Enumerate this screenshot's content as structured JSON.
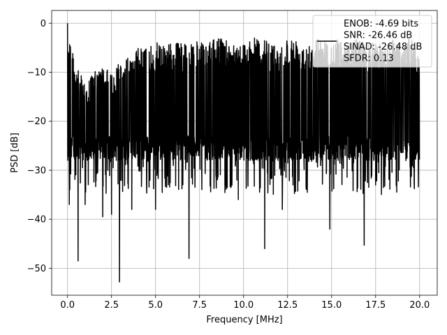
{
  "chart_data": {
    "type": "line",
    "xlabel": "Frequency [MHz]",
    "ylabel": "PSD [dB]",
    "xlim": [
      -0.9,
      21.0
    ],
    "ylim": [
      -55.5,
      2.6
    ],
    "xticks": [
      0.0,
      2.5,
      5.0,
      7.5,
      10.0,
      12.5,
      15.0,
      17.5,
      20.0
    ],
    "xtick_labels": [
      "0.0",
      "2.5",
      "5.0",
      "7.5",
      "10.0",
      "12.5",
      "15.0",
      "17.5",
      "20.0"
    ],
    "yticks": [
      0,
      -10,
      -20,
      -30,
      -40,
      -50
    ],
    "ytick_labels": [
      "0",
      "−10",
      "−20",
      "−30",
      "−40",
      "−50"
    ],
    "grid": true,
    "legend": {
      "placement": "top-right",
      "entries": [
        "ENOB: -4.69 bits",
        "SNR: -26.46 dB",
        "SINAD: -26.48 dB",
        "SFDR: 0.13"
      ]
    },
    "series": [
      {
        "color": "#000000",
        "x_range": [
          0.0,
          20.0
        ],
        "upper_envelope": {
          "x": [
            0.0,
            0.5,
            1.0,
            1.5,
            2.0,
            2.5,
            3.0,
            3.5,
            4.0,
            4.5,
            5.0,
            5.5,
            6.0,
            6.5,
            7.0,
            7.5,
            8.0,
            8.5,
            9.0,
            9.5,
            10.0,
            10.5,
            11.0,
            11.5,
            12.0,
            12.5,
            13.0,
            13.5,
            14.0,
            14.5,
            15.0,
            15.5,
            16.0,
            16.5,
            17.0,
            17.5,
            18.0,
            18.5,
            19.0,
            19.5,
            20.0
          ],
          "y": [
            0,
            -9,
            -12,
            -10,
            -9,
            -10,
            -7,
            -7,
            -5,
            -5,
            -4,
            -4,
            -4,
            -4,
            -3,
            -4,
            -4,
            -3,
            -3,
            -4,
            -4,
            -3,
            -3,
            -4,
            -4,
            -3,
            -3,
            -4,
            -3,
            -3,
            -4,
            -3,
            -4,
            -3,
            -4,
            -4,
            -4,
            -3,
            -4,
            -3,
            -6
          ]
        },
        "band": [
          -23,
          -13
        ],
        "dips": [
          {
            "x": 0.1,
            "y": -37
          },
          {
            "x": 0.6,
            "y": -48.5
          },
          {
            "x": 1.0,
            "y": -37
          },
          {
            "x": 2.0,
            "y": -39.5
          },
          {
            "x": 2.5,
            "y": -39
          },
          {
            "x": 2.95,
            "y": -52.8
          },
          {
            "x": 3.65,
            "y": -38
          },
          {
            "x": 5.0,
            "y": -38
          },
          {
            "x": 6.9,
            "y": -48
          },
          {
            "x": 9.7,
            "y": -36
          },
          {
            "x": 11.2,
            "y": -46
          },
          {
            "x": 12.2,
            "y": -38
          },
          {
            "x": 14.9,
            "y": -42
          },
          {
            "x": 16.85,
            "y": -45.3
          },
          {
            "x": 17.5,
            "y": -33
          }
        ]
      }
    ]
  }
}
